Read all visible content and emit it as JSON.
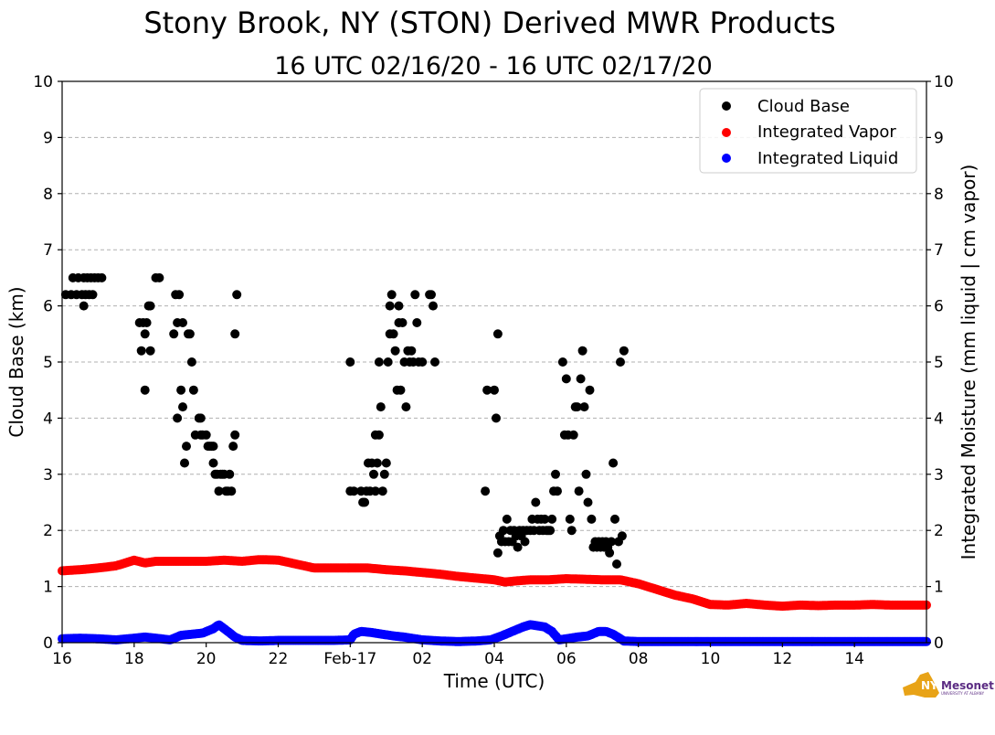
{
  "chart_data": {
    "type": "scatter",
    "title": "Stony Brook, NY (STON) Derived MWR Products",
    "subtitle": "16 UTC 02/16/20 - 16 UTC 02/17/20",
    "xlabel": "Time (UTC)",
    "ylabel": "Cloud Base (km)",
    "ylabel_right": "Integrated Moisture (mm liquid | cm vapor)",
    "xlim": [
      16,
      40
    ],
    "ylim": [
      0,
      10
    ],
    "ylim_right": [
      0,
      10
    ],
    "grid": "horizontal dashed",
    "legend_position": "top-right",
    "x_ticks": [
      {
        "value": 16,
        "label": "16"
      },
      {
        "value": 18,
        "label": "18"
      },
      {
        "value": 20,
        "label": "20"
      },
      {
        "value": 22,
        "label": "22"
      },
      {
        "value": 24,
        "label": "Feb-17"
      },
      {
        "value": 26,
        "label": "02"
      },
      {
        "value": 28,
        "label": "04"
      },
      {
        "value": 30,
        "label": "06"
      },
      {
        "value": 32,
        "label": "08"
      },
      {
        "value": 34,
        "label": "10"
      },
      {
        "value": 36,
        "label": "12"
      },
      {
        "value": 38,
        "label": "14"
      }
    ],
    "y_ticks": [
      "0",
      "1",
      "2",
      "3",
      "4",
      "5",
      "6",
      "7",
      "8",
      "9",
      "10"
    ],
    "y_ticks_right": [
      "0",
      "1",
      "2",
      "3",
      "4",
      "5",
      "6",
      "7",
      "8",
      "9",
      "10"
    ],
    "series": [
      {
        "name": "Cloud Base",
        "color": "#000000",
        "style": "points",
        "points": [
          [
            16.1,
            6.2
          ],
          [
            16.25,
            6.2
          ],
          [
            16.3,
            6.5
          ],
          [
            16.4,
            6.2
          ],
          [
            16.45,
            6.5
          ],
          [
            16.55,
            6.2
          ],
          [
            16.6,
            6.5
          ],
          [
            16.65,
            6.2
          ],
          [
            16.7,
            6.5
          ],
          [
            16.75,
            6.2
          ],
          [
            16.8,
            6.5
          ],
          [
            16.85,
            6.2
          ],
          [
            16.6,
            6.0
          ],
          [
            16.9,
            6.5
          ],
          [
            17.0,
            6.5
          ],
          [
            17.1,
            6.5
          ],
          [
            18.15,
            5.7
          ],
          [
            18.2,
            5.2
          ],
          [
            18.25,
            5.7
          ],
          [
            18.3,
            5.5
          ],
          [
            18.35,
            5.7
          ],
          [
            18.3,
            4.5
          ],
          [
            18.4,
            6.0
          ],
          [
            18.45,
            6.0
          ],
          [
            18.45,
            5.2
          ],
          [
            18.6,
            6.5
          ],
          [
            18.7,
            6.5
          ],
          [
            19.1,
            5.5
          ],
          [
            19.15,
            6.2
          ],
          [
            19.2,
            5.7
          ],
          [
            19.25,
            6.2
          ],
          [
            19.2,
            4.0
          ],
          [
            19.3,
            4.5
          ],
          [
            19.35,
            5.7
          ],
          [
            19.35,
            4.2
          ],
          [
            19.4,
            3.2
          ],
          [
            19.45,
            3.5
          ],
          [
            19.5,
            5.5
          ],
          [
            19.55,
            5.5
          ],
          [
            19.6,
            5.0
          ],
          [
            19.65,
            4.5
          ],
          [
            19.7,
            3.7
          ],
          [
            19.8,
            4.0
          ],
          [
            19.85,
            4.0
          ],
          [
            19.85,
            3.7
          ],
          [
            19.9,
            3.7
          ],
          [
            20.0,
            3.7
          ],
          [
            20.05,
            3.5
          ],
          [
            20.1,
            3.5
          ],
          [
            20.15,
            3.5
          ],
          [
            20.2,
            3.5
          ],
          [
            20.2,
            3.2
          ],
          [
            20.25,
            3.0
          ],
          [
            20.3,
            3.0
          ],
          [
            20.35,
            2.7
          ],
          [
            20.4,
            3.0
          ],
          [
            20.45,
            3.0
          ],
          [
            20.5,
            3.0
          ],
          [
            20.55,
            2.7
          ],
          [
            20.6,
            2.7
          ],
          [
            20.65,
            3.0
          ],
          [
            20.7,
            2.7
          ],
          [
            20.75,
            3.5
          ],
          [
            20.8,
            3.7
          ],
          [
            20.85,
            6.2
          ],
          [
            20.8,
            5.5
          ],
          [
            24.0,
            2.7
          ],
          [
            24.1,
            2.7
          ],
          [
            24.0,
            5.0
          ],
          [
            24.3,
            2.7
          ],
          [
            24.35,
            2.5
          ],
          [
            24.4,
            2.5
          ],
          [
            24.45,
            2.7
          ],
          [
            24.5,
            3.2
          ],
          [
            24.55,
            2.7
          ],
          [
            24.6,
            3.2
          ],
          [
            24.65,
            3.0
          ],
          [
            24.7,
            2.7
          ],
          [
            24.75,
            3.2
          ],
          [
            24.7,
            3.7
          ],
          [
            24.8,
            3.7
          ],
          [
            24.85,
            4.2
          ],
          [
            24.8,
            5.0
          ],
          [
            24.9,
            2.7
          ],
          [
            24.95,
            3.0
          ],
          [
            25.0,
            3.2
          ],
          [
            25.05,
            5.0
          ],
          [
            25.1,
            5.5
          ],
          [
            25.15,
            6.2
          ],
          [
            25.2,
            5.5
          ],
          [
            25.1,
            6.0
          ],
          [
            25.25,
            5.2
          ],
          [
            25.3,
            4.5
          ],
          [
            25.35,
            5.7
          ],
          [
            25.4,
            4.5
          ],
          [
            25.35,
            6.0
          ],
          [
            25.45,
            5.7
          ],
          [
            25.5,
            5.0
          ],
          [
            25.55,
            4.2
          ],
          [
            25.6,
            5.2
          ],
          [
            25.65,
            5.0
          ],
          [
            25.7,
            5.2
          ],
          [
            25.75,
            5.0
          ],
          [
            25.8,
            6.2
          ],
          [
            25.85,
            5.7
          ],
          [
            25.9,
            5.0
          ],
          [
            26.0,
            5.0
          ],
          [
            26.2,
            6.2
          ],
          [
            26.25,
            6.2
          ],
          [
            26.3,
            6.0
          ],
          [
            26.35,
            5.0
          ],
          [
            27.75,
            2.7
          ],
          [
            27.8,
            4.5
          ],
          [
            28.0,
            4.5
          ],
          [
            28.05,
            4.0
          ],
          [
            28.1,
            5.5
          ],
          [
            28.1,
            1.6
          ],
          [
            28.15,
            1.9
          ],
          [
            28.2,
            1.8
          ],
          [
            28.25,
            2.0
          ],
          [
            28.3,
            1.8
          ],
          [
            28.35,
            2.2
          ],
          [
            28.4,
            1.8
          ],
          [
            28.45,
            2.0
          ],
          [
            28.5,
            1.8
          ],
          [
            28.55,
            2.0
          ],
          [
            28.6,
            1.9
          ],
          [
            28.65,
            1.7
          ],
          [
            28.7,
            2.0
          ],
          [
            28.75,
            1.9
          ],
          [
            28.8,
            2.0
          ],
          [
            28.85,
            1.8
          ],
          [
            28.9,
            2.0
          ],
          [
            29.0,
            2.0
          ],
          [
            29.05,
            2.2
          ],
          [
            29.1,
            2.0
          ],
          [
            29.15,
            2.5
          ],
          [
            29.2,
            2.2
          ],
          [
            29.25,
            2.0
          ],
          [
            29.3,
            2.2
          ],
          [
            29.35,
            2.0
          ],
          [
            29.4,
            2.2
          ],
          [
            29.45,
            2.0
          ],
          [
            29.5,
            2.0
          ],
          [
            29.55,
            2.0
          ],
          [
            29.6,
            2.2
          ],
          [
            29.65,
            2.7
          ],
          [
            29.7,
            3.0
          ],
          [
            29.75,
            2.7
          ],
          [
            29.9,
            5.0
          ],
          [
            29.95,
            3.7
          ],
          [
            30.0,
            4.7
          ],
          [
            30.05,
            3.7
          ],
          [
            30.1,
            2.2
          ],
          [
            30.15,
            2.0
          ],
          [
            30.2,
            3.7
          ],
          [
            30.25,
            4.2
          ],
          [
            30.3,
            4.2
          ],
          [
            30.35,
            2.7
          ],
          [
            30.4,
            4.7
          ],
          [
            30.45,
            5.2
          ],
          [
            30.5,
            4.2
          ],
          [
            30.55,
            3.0
          ],
          [
            30.6,
            2.5
          ],
          [
            30.65,
            4.5
          ],
          [
            30.7,
            2.2
          ],
          [
            30.75,
            1.7
          ],
          [
            30.8,
            1.8
          ],
          [
            30.85,
            1.7
          ],
          [
            30.9,
            1.8
          ],
          [
            30.95,
            1.7
          ],
          [
            31.0,
            1.8
          ],
          [
            31.05,
            1.7
          ],
          [
            31.1,
            1.8
          ],
          [
            31.15,
            1.7
          ],
          [
            31.2,
            1.6
          ],
          [
            31.25,
            1.8
          ],
          [
            31.3,
            3.2
          ],
          [
            31.35,
            2.2
          ],
          [
            31.4,
            1.4
          ],
          [
            31.45,
            1.8
          ],
          [
            31.5,
            5.0
          ],
          [
            31.55,
            1.9
          ],
          [
            31.6,
            5.2
          ]
        ]
      },
      {
        "name": "Integrated Vapor",
        "color": "#ff0000",
        "style": "dense-points",
        "points": [
          [
            16.0,
            1.28
          ],
          [
            16.5,
            1.3
          ],
          [
            17.0,
            1.33
          ],
          [
            17.5,
            1.37
          ],
          [
            18.0,
            1.47
          ],
          [
            18.3,
            1.42
          ],
          [
            18.6,
            1.45
          ],
          [
            19.0,
            1.45
          ],
          [
            19.5,
            1.45
          ],
          [
            20.0,
            1.45
          ],
          [
            20.5,
            1.47
          ],
          [
            21.0,
            1.45
          ],
          [
            21.5,
            1.48
          ],
          [
            22.0,
            1.47
          ],
          [
            22.5,
            1.4
          ],
          [
            23.0,
            1.33
          ],
          [
            23.5,
            1.33
          ],
          [
            24.0,
            1.33
          ],
          [
            24.5,
            1.33
          ],
          [
            25.0,
            1.3
          ],
          [
            25.5,
            1.28
          ],
          [
            26.0,
            1.25
          ],
          [
            26.5,
            1.22
          ],
          [
            27.0,
            1.18
          ],
          [
            27.5,
            1.15
          ],
          [
            28.0,
            1.12
          ],
          [
            28.3,
            1.08
          ],
          [
            28.6,
            1.1
          ],
          [
            29.0,
            1.12
          ],
          [
            29.5,
            1.12
          ],
          [
            30.0,
            1.14
          ],
          [
            30.5,
            1.13
          ],
          [
            31.0,
            1.12
          ],
          [
            31.5,
            1.12
          ],
          [
            32.0,
            1.05
          ],
          [
            32.5,
            0.95
          ],
          [
            33.0,
            0.85
          ],
          [
            33.5,
            0.78
          ],
          [
            34.0,
            0.68
          ],
          [
            34.5,
            0.67
          ],
          [
            35.0,
            0.7
          ],
          [
            35.5,
            0.67
          ],
          [
            36.0,
            0.65
          ],
          [
            36.5,
            0.67
          ],
          [
            37.0,
            0.66
          ],
          [
            37.5,
            0.67
          ],
          [
            38.0,
            0.67
          ],
          [
            38.5,
            0.68
          ],
          [
            39.0,
            0.67
          ],
          [
            39.5,
            0.67
          ],
          [
            40.0,
            0.67
          ]
        ]
      },
      {
        "name": "Integrated Liquid",
        "color": "#0000ff",
        "style": "dense-points",
        "points": [
          [
            16.0,
            0.07
          ],
          [
            16.5,
            0.08
          ],
          [
            17.0,
            0.07
          ],
          [
            17.5,
            0.05
          ],
          [
            18.0,
            0.08
          ],
          [
            18.3,
            0.1
          ],
          [
            18.6,
            0.08
          ],
          [
            19.0,
            0.05
          ],
          [
            19.3,
            0.13
          ],
          [
            19.6,
            0.15
          ],
          [
            19.9,
            0.17
          ],
          [
            20.2,
            0.25
          ],
          [
            20.35,
            0.32
          ],
          [
            20.5,
            0.25
          ],
          [
            20.8,
            0.1
          ],
          [
            21.0,
            0.04
          ],
          [
            21.5,
            0.03
          ],
          [
            22.0,
            0.04
          ],
          [
            22.5,
            0.04
          ],
          [
            23.0,
            0.04
          ],
          [
            23.5,
            0.04
          ],
          [
            24.0,
            0.05
          ],
          [
            24.1,
            0.15
          ],
          [
            24.3,
            0.2
          ],
          [
            24.6,
            0.18
          ],
          [
            24.9,
            0.15
          ],
          [
            25.2,
            0.12
          ],
          [
            25.5,
            0.1
          ],
          [
            25.8,
            0.07
          ],
          [
            26.0,
            0.05
          ],
          [
            26.5,
            0.03
          ],
          [
            27.0,
            0.02
          ],
          [
            27.5,
            0.03
          ],
          [
            27.9,
            0.05
          ],
          [
            28.2,
            0.12
          ],
          [
            28.5,
            0.2
          ],
          [
            28.8,
            0.28
          ],
          [
            29.0,
            0.32
          ],
          [
            29.2,
            0.3
          ],
          [
            29.4,
            0.28
          ],
          [
            29.6,
            0.2
          ],
          [
            29.8,
            0.05
          ],
          [
            30.0,
            0.07
          ],
          [
            30.3,
            0.1
          ],
          [
            30.6,
            0.12
          ],
          [
            30.9,
            0.2
          ],
          [
            31.1,
            0.2
          ],
          [
            31.3,
            0.15
          ],
          [
            31.6,
            0.03
          ],
          [
            32.0,
            0.02
          ],
          [
            33.0,
            0.02
          ],
          [
            34.0,
            0.02
          ],
          [
            35.0,
            0.02
          ],
          [
            36.0,
            0.02
          ],
          [
            37.0,
            0.02
          ],
          [
            38.0,
            0.02
          ],
          [
            39.0,
            0.02
          ],
          [
            40.0,
            0.02
          ]
        ]
      }
    ]
  },
  "logo": {
    "name": "NYS Mesonet",
    "text_nys": "NYS",
    "text_mesonet": "Mesonet",
    "subtext": "UNIVERSITY AT ALBANY",
    "colors": {
      "state": "#e8a317",
      "text": "#5b2c83"
    }
  }
}
